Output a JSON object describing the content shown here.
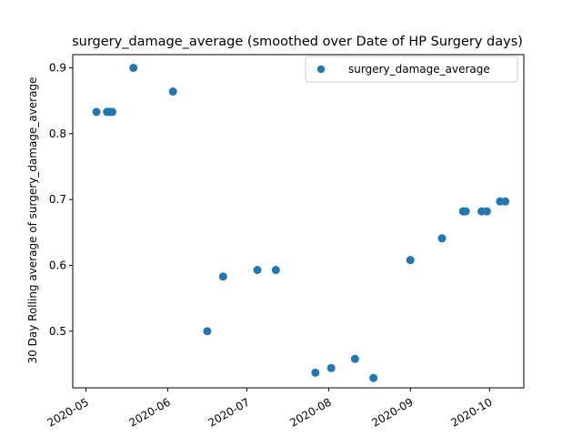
{
  "chart_data": {
    "type": "scatter",
    "title": "surgery_damage_average (smoothed over Date of HP Surgery days)",
    "xlabel": "",
    "ylabel": "30 Day Rolling average of surgery_damage_average",
    "legend": "top-right",
    "grid": false,
    "marker_color": "#1f77b4",
    "series": [
      {
        "name": "surgery_damage_average",
        "points": [
          {
            "x": "2020-05-05",
            "y": 0.833
          },
          {
            "x": "2020-05-09",
            "y": 0.833
          },
          {
            "x": "2020-05-10",
            "y": 0.833
          },
          {
            "x": "2020-05-11",
            "y": 0.833
          },
          {
            "x": "2020-05-19",
            "y": 0.9
          },
          {
            "x": "2020-06-03",
            "y": 0.864
          },
          {
            "x": "2020-06-16",
            "y": 0.5
          },
          {
            "x": "2020-06-22",
            "y": 0.583
          },
          {
            "x": "2020-07-05",
            "y": 0.593
          },
          {
            "x": "2020-07-12",
            "y": 0.593
          },
          {
            "x": "2020-07-27",
            "y": 0.437
          },
          {
            "x": "2020-08-02",
            "y": 0.444
          },
          {
            "x": "2020-08-11",
            "y": 0.458
          },
          {
            "x": "2020-08-18",
            "y": 0.429
          },
          {
            "x": "2020-09-01",
            "y": 0.608
          },
          {
            "x": "2020-09-13",
            "y": 0.641
          },
          {
            "x": "2020-09-21",
            "y": 0.682
          },
          {
            "x": "2020-09-22",
            "y": 0.682
          },
          {
            "x": "2020-09-28",
            "y": 0.682
          },
          {
            "x": "2020-09-30",
            "y": 0.682
          },
          {
            "x": "2020-10-05",
            "y": 0.697
          },
          {
            "x": "2020-10-07",
            "y": 0.697
          }
        ]
      }
    ],
    "xlim": [
      "2020-04-26",
      "2020-10-14"
    ],
    "ylim": [
      0.414,
      0.92
    ],
    "x_ticks": [
      {
        "value": "2020-05-01",
        "label": "2020-05"
      },
      {
        "value": "2020-06-01",
        "label": "2020-06"
      },
      {
        "value": "2020-07-01",
        "label": "2020-07"
      },
      {
        "value": "2020-08-01",
        "label": "2020-08"
      },
      {
        "value": "2020-09-01",
        "label": "2020-09"
      },
      {
        "value": "2020-10-01",
        "label": "2020-10"
      }
    ],
    "y_ticks": [
      {
        "value": 0.5,
        "label": "0.5"
      },
      {
        "value": 0.6,
        "label": "0.6"
      },
      {
        "value": 0.7,
        "label": "0.7"
      },
      {
        "value": 0.8,
        "label": "0.8"
      },
      {
        "value": 0.9,
        "label": "0.9"
      }
    ]
  }
}
